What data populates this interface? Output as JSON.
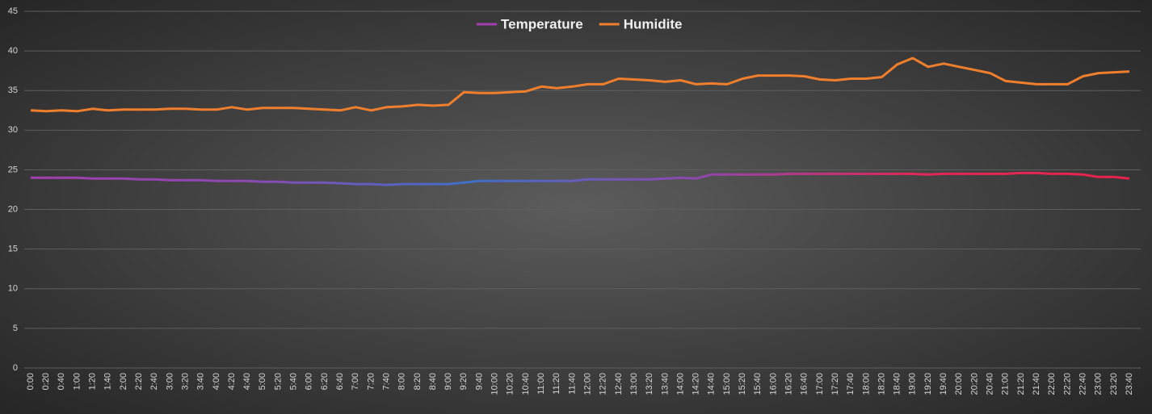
{
  "chart_data": {
    "type": "line",
    "categories": [
      "0:00",
      "0:20",
      "0:40",
      "1:00",
      "1:20",
      "1:40",
      "2:00",
      "2:20",
      "2:40",
      "3:00",
      "3:20",
      "3:40",
      "4:00",
      "4:20",
      "4:40",
      "5:00",
      "5:20",
      "5:40",
      "6:00",
      "6:20",
      "6:40",
      "7:00",
      "7:20",
      "7:40",
      "8:00",
      "8:20",
      "8:40",
      "9:00",
      "9:20",
      "9:40",
      "10:00",
      "10:20",
      "10:40",
      "11:00",
      "11:20",
      "11:40",
      "12:00",
      "12:20",
      "12:40",
      "13:00",
      "13:20",
      "13:40",
      "14:00",
      "14:20",
      "14:40",
      "15:00",
      "15:20",
      "15:40",
      "16:00",
      "16:20",
      "16:40",
      "17:00",
      "17:20",
      "17:40",
      "18:00",
      "18:20",
      "18:40",
      "19:00",
      "19:20",
      "19:40",
      "20:00",
      "20:20",
      "20:40",
      "21:00",
      "21:20",
      "21:40",
      "22:00",
      "22:20",
      "22:40",
      "23:00",
      "23:20",
      "23:40"
    ],
    "series": [
      {
        "name": "Temperature",
        "color": "#a33fae",
        "gradient": [
          "#a33fae",
          "#8a4ab2",
          "#3f6fc6",
          "#8c48b0",
          "#e0285a",
          "#e8234a"
        ],
        "values": [
          24.0,
          24.0,
          24.0,
          24.0,
          23.9,
          23.9,
          23.9,
          23.8,
          23.8,
          23.7,
          23.7,
          23.7,
          23.6,
          23.6,
          23.6,
          23.5,
          23.5,
          23.4,
          23.4,
          23.4,
          23.3,
          23.2,
          23.2,
          23.1,
          23.2,
          23.2,
          23.2,
          23.2,
          23.4,
          23.6,
          23.6,
          23.6,
          23.6,
          23.6,
          23.6,
          23.6,
          23.8,
          23.8,
          23.8,
          23.8,
          23.8,
          23.9,
          24.0,
          23.9,
          24.4,
          24.4,
          24.4,
          24.4,
          24.4,
          24.5,
          24.5,
          24.5,
          24.5,
          24.5,
          24.5,
          24.5,
          24.5,
          24.5,
          24.4,
          24.5,
          24.5,
          24.5,
          24.5,
          24.5,
          24.6,
          24.6,
          24.5,
          24.5,
          24.4,
          24.1,
          24.1,
          23.9
        ]
      },
      {
        "name": "Humidite",
        "color": "#f07f2d",
        "values": [
          32.5,
          32.4,
          32.5,
          32.4,
          32.7,
          32.5,
          32.6,
          32.6,
          32.6,
          32.7,
          32.7,
          32.6,
          32.6,
          32.9,
          32.6,
          32.8,
          32.8,
          32.8,
          32.7,
          32.6,
          32.5,
          32.9,
          32.5,
          32.9,
          33.0,
          33.2,
          33.1,
          33.2,
          34.8,
          34.7,
          34.7,
          34.8,
          34.9,
          35.5,
          35.3,
          35.5,
          35.8,
          35.8,
          36.5,
          36.4,
          36.3,
          36.1,
          36.3,
          35.8,
          35.9,
          35.8,
          36.5,
          36.9,
          36.9,
          36.9,
          36.8,
          36.4,
          36.3,
          36.5,
          36.5,
          36.7,
          38.3,
          39.1,
          38.0,
          38.4,
          38.0,
          37.6,
          37.2,
          36.2,
          36.0,
          35.8,
          35.8,
          35.8,
          36.8,
          37.2,
          37.3,
          37.4
        ]
      }
    ],
    "ylim": [
      0,
      45
    ],
    "yticks": [
      0,
      5,
      10,
      15,
      20,
      25,
      30,
      35,
      40,
      45
    ],
    "grid": true,
    "legend": "top"
  }
}
